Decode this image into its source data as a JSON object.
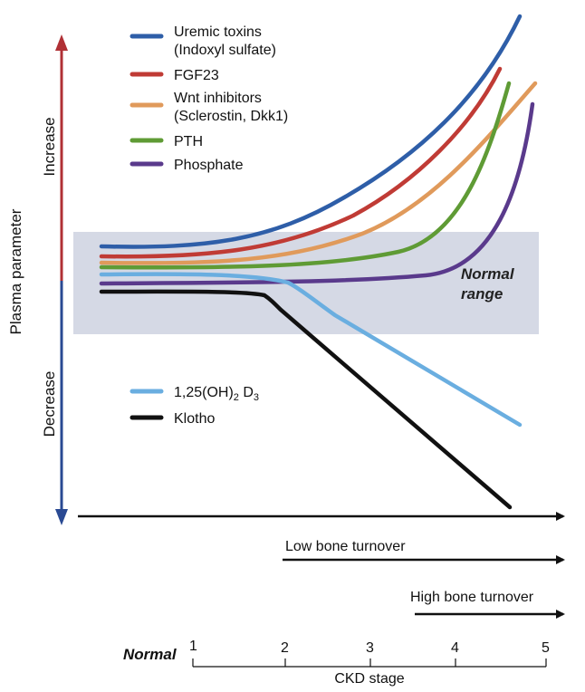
{
  "y_axis": {
    "label": "Plasma parameter",
    "increase": "Increase",
    "decrease": "Decrease",
    "increase_color": "#b03035",
    "decrease_color": "#2a4a93"
  },
  "normal_range": {
    "label_line1": "Normal",
    "label_line2": "range",
    "color": "#d5d9e5"
  },
  "legend_top": [
    {
      "line1": "Uremic toxins",
      "line2": "(Indoxyl sulfate)",
      "color": "#2e5ea8"
    },
    {
      "line1": "FGF23",
      "line2": "",
      "color": "#c03b35"
    },
    {
      "line1": "Wnt inhibitors",
      "line2": "(Sclerostin, Dkk1)",
      "color": "#e09a5b"
    },
    {
      "line1": "PTH",
      "line2": "",
      "color": "#5f9b35"
    },
    {
      "line1": "Phosphate",
      "line2": "",
      "color": "#5a3a8c"
    }
  ],
  "legend_bottom": [
    {
      "base": "1,25(OH)",
      "sub1": "2",
      "mid": " D",
      "sub2": "3",
      "color": "#6aaee0"
    },
    {
      "text": "Klotho",
      "color": "#111111"
    }
  ],
  "arrows": {
    "low_bone_turnover": "Low bone turnover",
    "high_bone_turnover": "High bone turnover"
  },
  "x_axis": {
    "label": "CKD stage",
    "normal": "Normal",
    "ticks": [
      "1",
      "2",
      "3",
      "4",
      "5"
    ]
  },
  "curves": [
    {
      "name": "uremic-toxins",
      "color": "#2e5ea8"
    },
    {
      "name": "fgf23",
      "color": "#c03b35"
    },
    {
      "name": "wnt-inhibitors",
      "color": "#e09a5b"
    },
    {
      "name": "pth",
      "color": "#5f9b35"
    },
    {
      "name": "phosphate",
      "color": "#5a3a8c"
    },
    {
      "name": "vitamin-d",
      "color": "#6aaee0"
    },
    {
      "name": "klotho",
      "color": "#111111"
    }
  ]
}
